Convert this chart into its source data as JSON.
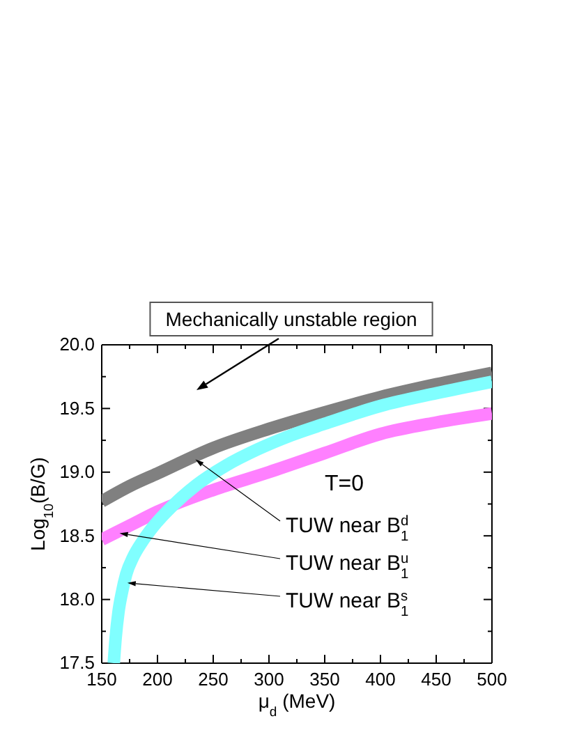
{
  "chart_data": {
    "type": "line",
    "xlabel": "μ$_{d}$ (MeV)",
    "ylabel": "Log$_{10}$(B/G)",
    "xlim": [
      150,
      500
    ],
    "ylim": [
      17.5,
      20
    ],
    "xticks": [
      150,
      {
        "value": 175,
        "label": null
      },
      200,
      {
        "value": 225,
        "label": null
      },
      250,
      {
        "value": 275,
        "label": null
      },
      300,
      {
        "value": 325,
        "label": null
      },
      350,
      {
        "value": 375,
        "label": null
      },
      400,
      {
        "value": 425,
        "label": null
      },
      450,
      {
        "value": 475,
        "label": null
      },
      500
    ],
    "yticks": [
      17.5,
      {
        "value": 17.75,
        "label": null
      },
      {
        "value": 18,
        "label": "18.0"
      },
      {
        "value": 18.25,
        "label": null
      },
      18.5,
      {
        "value": 18.75,
        "label": null
      },
      {
        "value": 19,
        "label": "19.0"
      },
      {
        "value": 19.25,
        "label": null
      },
      19.5,
      {
        "value": 19.75,
        "label": null
      },
      {
        "value": 20,
        "label": "20.0"
      }
    ],
    "series": [
      {
        "color": "#808080",
        "x": [
          150,
          175,
          200,
          250,
          300,
          350,
          400,
          450,
          500
        ],
        "values": [
          18.77,
          18.89,
          18.99,
          19.19,
          19.34,
          19.47,
          19.59,
          19.69,
          19.78
        ]
      },
      {
        "color": "#ff80ff",
        "x": [
          150,
          175,
          200,
          250,
          300,
          350,
          400,
          450,
          500
        ],
        "values": [
          18.47,
          18.58,
          18.69,
          18.86,
          19.0,
          19.15,
          19.3,
          19.39,
          19.46
        ]
      },
      {
        "color": "#80ffff",
        "x": [
          160.8,
          162.5,
          165,
          168,
          172,
          178,
          186,
          196,
          214,
          235,
          261,
          290,
          320,
          350,
          400,
          450,
          500
        ],
        "values": [
          17.5,
          17.7,
          17.9,
          18.05,
          18.2,
          18.33,
          18.45,
          18.57,
          18.74,
          18.9,
          19.05,
          19.18,
          19.29,
          19.38,
          19.52,
          19.62,
          19.71
        ]
      }
    ],
    "annotations": [
      "Mechanically unstable region",
      "T=0",
      {
        "text": "TUW near B$_{1}$$^{d}$",
        "x": 234,
        "y": 19.1
      },
      {
        "text": "TUW near B$_{1}$$^{u}$",
        "x": 166,
        "y": 18.52
      },
      {
        "text": "TUW near B$_{1}$$^{s}$",
        "x": 173,
        "y": 18.13
      }
    ]
  }
}
